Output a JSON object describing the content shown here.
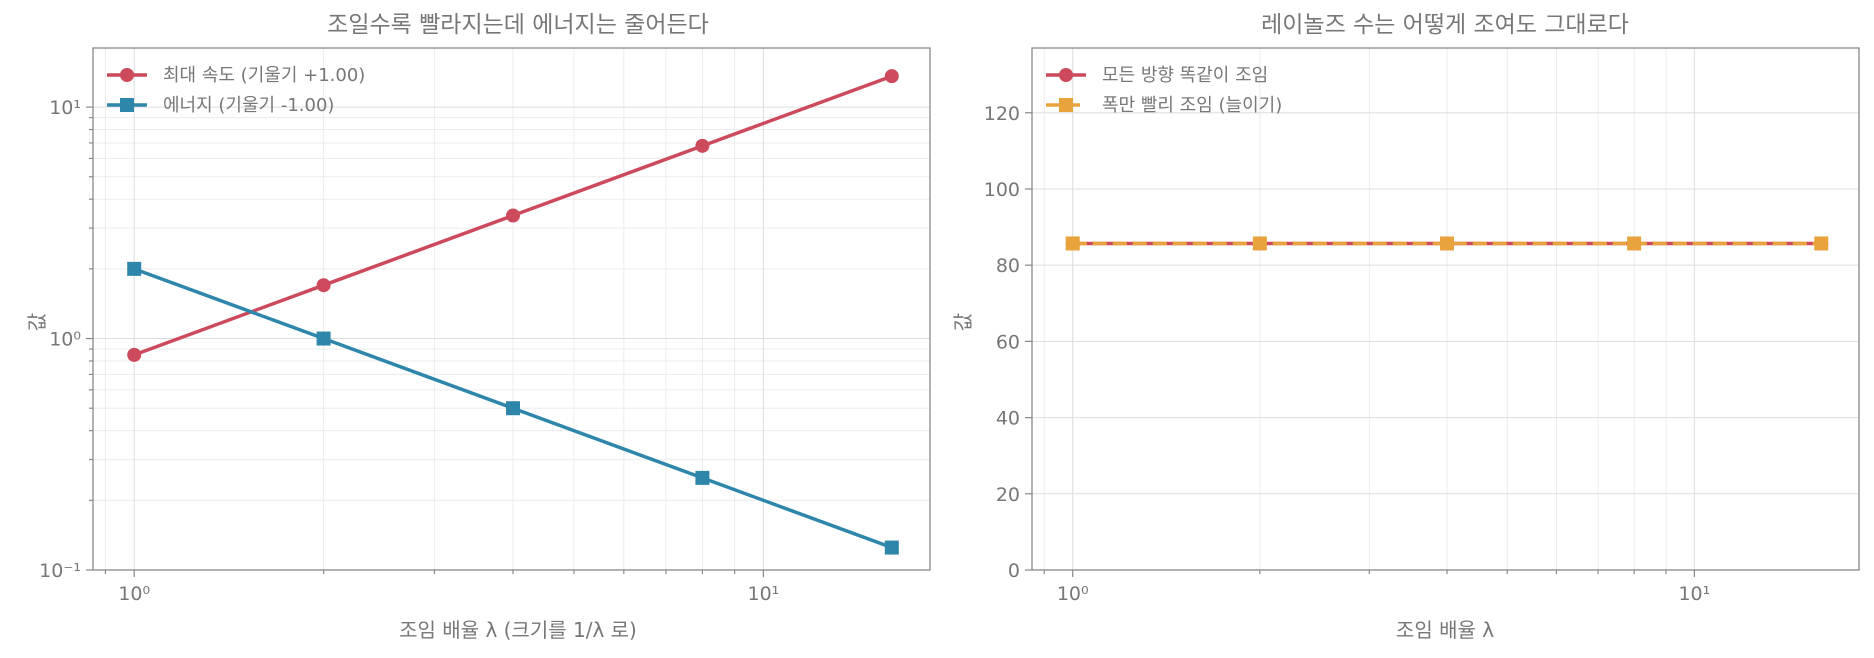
{
  "chart_data": [
    {
      "type": "line",
      "title": "조일수록 빨라지는데 에너지는 줄어든다",
      "xlabel": "조임 배율 λ (크기를 1/λ 로)",
      "ylabel": "값",
      "xscale": "log",
      "yscale": "log",
      "xlim": [
        0.86,
        18.4
      ],
      "ylim": [
        0.1,
        18
      ],
      "xticks": [
        {
          "value": 1,
          "label": "10⁰"
        },
        {
          "value": 10,
          "label": "10¹"
        }
      ],
      "yticks": [
        {
          "value": 0.1,
          "label": "10⁻¹"
        },
        {
          "value": 1,
          "label": "10⁰"
        },
        {
          "value": 10,
          "label": "10¹"
        }
      ],
      "grid": true,
      "legend_position": "upper-left",
      "x": [
        1,
        2,
        4,
        8,
        16
      ],
      "series": [
        {
          "name": "최대 속도 (기울기 +1.00)",
          "values": [
            0.85,
            1.7,
            3.4,
            6.8,
            13.6
          ],
          "color": "#cc4a5c",
          "marker": "circle",
          "linestyle": "solid"
        },
        {
          "name": "에너지 (기울기 -1.00)",
          "values": [
            2.0,
            1.0,
            0.5,
            0.25,
            0.125
          ],
          "color": "#2e86ab",
          "marker": "square",
          "linestyle": "solid"
        }
      ]
    },
    {
      "type": "line",
      "title": "레이놀즈 수는 어떻게 조여도 그대로다",
      "xlabel": "조임 배율 λ",
      "ylabel": "값",
      "xscale": "log",
      "yscale": "linear",
      "xlim": [
        0.86,
        18.4
      ],
      "ylim": [
        0,
        137
      ],
      "xticks": [
        {
          "value": 1,
          "label": "10⁰"
        },
        {
          "value": 10,
          "label": "10¹"
        }
      ],
      "yticks": [
        {
          "value": 0,
          "label": "0"
        },
        {
          "value": 20,
          "label": "20"
        },
        {
          "value": 40,
          "label": "40"
        },
        {
          "value": 60,
          "label": "60"
        },
        {
          "value": 80,
          "label": "80"
        },
        {
          "value": 100,
          "label": "100"
        },
        {
          "value": 120,
          "label": "120"
        }
      ],
      "grid": true,
      "legend_position": "upper-left",
      "x": [
        1,
        2,
        4,
        8,
        16
      ],
      "series": [
        {
          "name": "모든 방향 똑같이 조임",
          "values": [
            85.7,
            85.7,
            85.7,
            85.7,
            85.7
          ],
          "color": "#cc4a5c",
          "marker": "circle",
          "linestyle": "solid"
        },
        {
          "name": "폭만 빨리 조임 (늘이기)",
          "values": [
            85.7,
            85.7,
            85.7,
            85.7,
            85.7
          ],
          "color": "#e8a33d",
          "marker": "square",
          "linestyle": "dashed"
        }
      ]
    }
  ]
}
